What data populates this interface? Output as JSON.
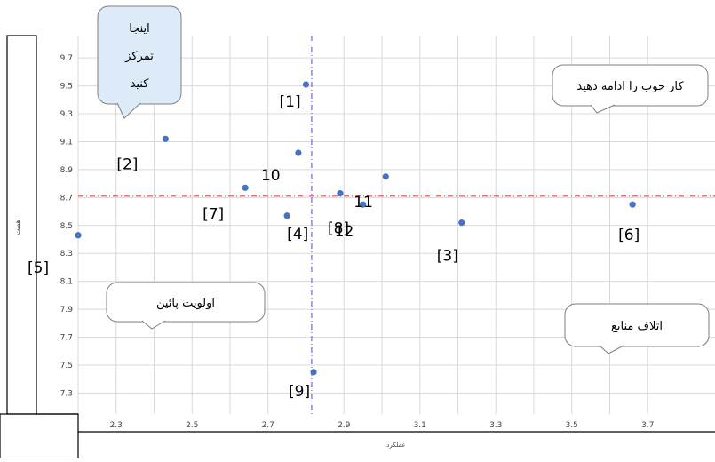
{
  "chart_data": {
    "type": "scatter",
    "title": "",
    "xlabel": "عملکرد",
    "ylabel": "اهمیت",
    "xlim": [
      2.2,
      3.75
    ],
    "ylim": [
      7.15,
      9.85
    ],
    "x_ticks": [
      "2.3",
      "2.5",
      "2.7",
      "2.9",
      "3.1",
      "3.3",
      "3.5",
      "3.7"
    ],
    "y_ticks": [
      "9.7",
      "9.5",
      "9.3",
      "9.1",
      "8.9",
      "8.7",
      "8.5",
      "8.3",
      "8.1",
      "7.9",
      "7.7",
      "7.5",
      "7.3"
    ],
    "grid": true,
    "points": [
      {
        "label": "[1]",
        "x": 2.8,
        "y": 9.51
      },
      {
        "label": "[2]",
        "x": 2.43,
        "y": 9.12
      },
      {
        "label": "[3]",
        "x": 3.21,
        "y": 8.52
      },
      {
        "label": "[4]",
        "x": 2.75,
        "y": 8.57
      },
      {
        "label": "[5]",
        "x": 2.2,
        "y": 8.43
      },
      {
        "label": "[6]",
        "x": 3.66,
        "y": 8.65
      },
      {
        "label": "[7]",
        "x": 2.64,
        "y": 8.77
      },
      {
        "label": "[8]",
        "x": 2.89,
        "y": 8.73
      },
      {
        "label": "[9]",
        "x": 2.82,
        "y": 7.45
      },
      {
        "label": "10",
        "x": 2.78,
        "y": 9.02
      },
      {
        "label": "11",
        "x": 3.01,
        "y": 8.85
      },
      {
        "label": "12",
        "x": 2.95,
        "y": 8.65
      }
    ],
    "reference_lines": {
      "vertical_x": 2.815,
      "horizontal_y": 8.71
    },
    "quadrant_callouts": {
      "top_left": "اینجا تمرکز کنید",
      "top_right": "کار خوب را ادامه دهید",
      "bottom_left": "اولویت پائین",
      "bottom_right": "اتلاف منابع"
    },
    "colors": {
      "points": "#4472c4",
      "vertical_line": "#7b6fe0",
      "horizontal_line": "#e06666",
      "callout_fill": "#ffffff",
      "callout_focus_fill": "#dcebf7",
      "grid": "#d9d9d9"
    }
  }
}
